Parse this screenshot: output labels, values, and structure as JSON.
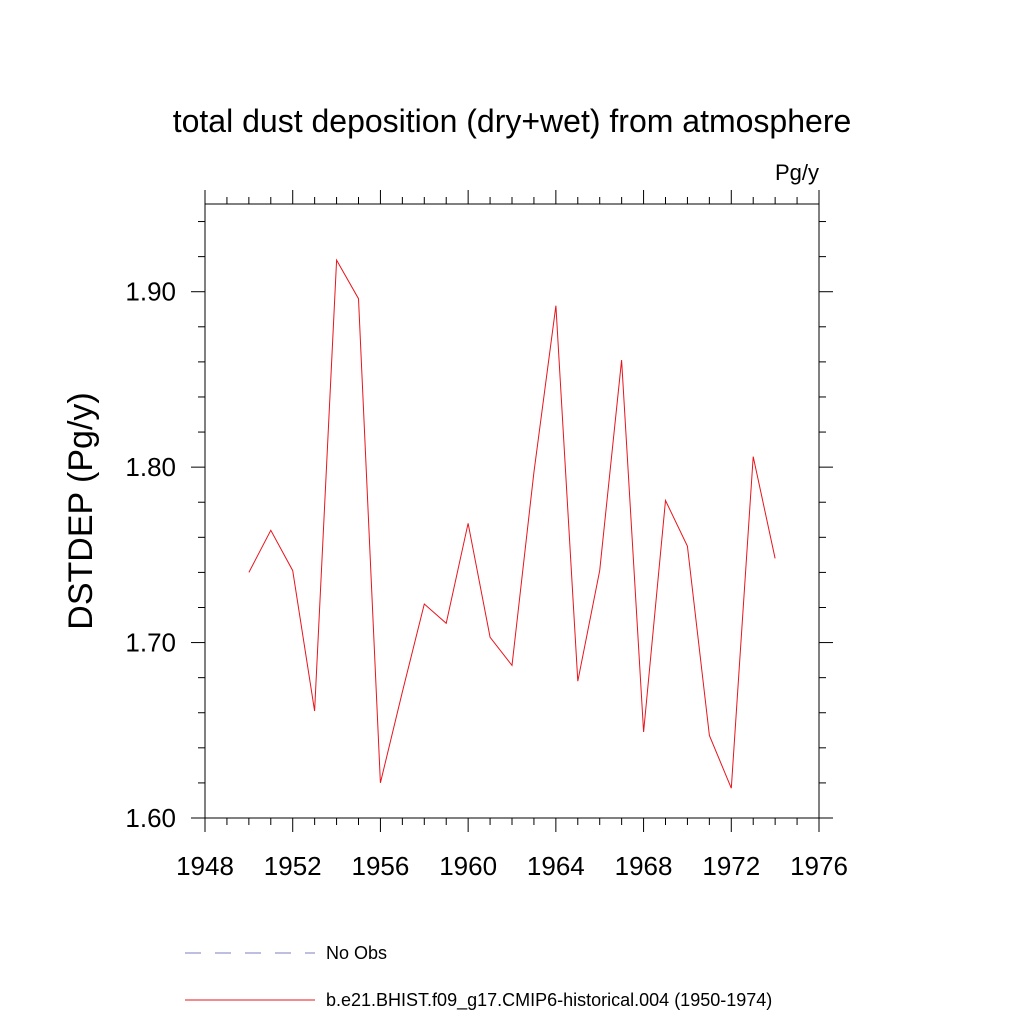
{
  "chart_data": {
    "type": "line",
    "title": "total dust deposition (dry+wet) from atmosphere",
    "units_label": "Pg/y",
    "ylabel": "DSTDEP  (Pg/y)",
    "xlabel": "",
    "xlim": [
      1948,
      1976
    ],
    "ylim": [
      1.6,
      1.95
    ],
    "xticks": [
      1948,
      1952,
      1956,
      1960,
      1964,
      1968,
      1972,
      1976
    ],
    "xtick_labels": [
      "1948",
      "1952",
      "1956",
      "1960",
      "1964",
      "1968",
      "1972",
      "1976"
    ],
    "yticks": [
      1.6,
      1.7,
      1.8,
      1.9
    ],
    "ytick_labels": [
      "1.60",
      "1.70",
      "1.80",
      "1.90"
    ],
    "grid": false,
    "series": [
      {
        "name": "b.e21.BHIST.f09_g17.CMIP6-historical.004 (1950-1974)",
        "color": "#e8141c",
        "style": "solid",
        "x": [
          1950,
          1951,
          1952,
          1953,
          1954,
          1955,
          1956,
          1957,
          1958,
          1959,
          1960,
          1961,
          1962,
          1963,
          1964,
          1965,
          1966,
          1967,
          1968,
          1969,
          1970,
          1971,
          1972,
          1973,
          1974
        ],
        "values": [
          1.74,
          1.764,
          1.741,
          1.661,
          1.918,
          1.896,
          1.62,
          1.672,
          1.722,
          1.711,
          1.768,
          1.703,
          1.687,
          1.797,
          1.892,
          1.678,
          1.741,
          1.861,
          1.649,
          1.781,
          1.755,
          1.647,
          1.617,
          1.806,
          1.748
        ]
      }
    ],
    "legend": [
      {
        "label": "No Obs",
        "color": "#7e7ec0",
        "style": "dashed"
      },
      {
        "label": "b.e21.BHIST.f09_g17.CMIP6-historical.004 (1950-1974)",
        "color": "#e8141c",
        "style": "solid"
      }
    ],
    "legend_position": "bottom-left"
  }
}
